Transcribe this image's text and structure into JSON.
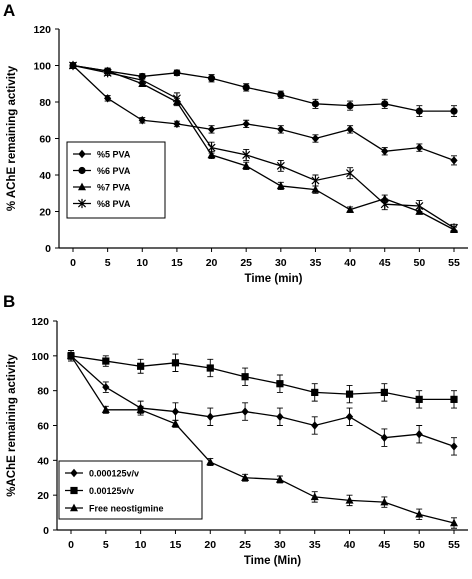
{
  "chart_data": [
    {
      "panel": "A",
      "type": "line",
      "xlabel": "Time (min)",
      "ylabel": "% AChE remaining activity",
      "x": [
        0,
        5,
        10,
        15,
        20,
        25,
        30,
        35,
        40,
        45,
        50,
        55
      ],
      "xticks": [
        0,
        5,
        10,
        15,
        20,
        25,
        30,
        35,
        40,
        45,
        50,
        55
      ],
      "ylim": [
        0,
        120
      ],
      "yticks": [
        0,
        20,
        40,
        60,
        80,
        100,
        120
      ],
      "grid": false,
      "legend_position": "bottom-left",
      "series": [
        {
          "name": "%5 PVA",
          "marker": "diamond",
          "color": "#000000",
          "values": [
            100,
            82,
            70,
            68,
            65,
            68,
            65,
            60,
            65,
            53,
            55,
            48
          ],
          "errors": [
            1.5,
            1.5,
            1.5,
            1.5,
            2,
            2,
            2,
            2,
            2,
            2,
            2,
            2.5
          ]
        },
        {
          "name": "%6 PVA",
          "marker": "circle",
          "color": "#000000",
          "values": [
            100,
            97,
            94,
            96,
            93,
            88,
            84,
            79,
            78,
            79,
            75,
            75
          ],
          "errors": [
            1.5,
            1.5,
            1.5,
            1.5,
            2,
            2,
            2,
            2.5,
            2.5,
            2.5,
            3,
            3
          ]
        },
        {
          "name": "%7 PVA",
          "marker": "triangle",
          "color": "#000000",
          "values": [
            100,
            97,
            90,
            80,
            51,
            45,
            34,
            32,
            21,
            27,
            20,
            10
          ],
          "errors": [
            1.5,
            1.5,
            1.5,
            2,
            2,
            2,
            2,
            2,
            1.5,
            2,
            1.5,
            1.5
          ]
        },
        {
          "name": "%8 PVA",
          "marker": "star",
          "color": "#000000",
          "values": [
            100,
            96,
            92,
            82,
            55,
            51,
            45,
            37,
            41,
            24,
            23,
            11
          ],
          "errors": [
            1.5,
            1.5,
            2,
            3,
            3,
            3,
            3,
            3,
            3,
            3,
            3,
            2
          ]
        }
      ]
    },
    {
      "panel": "B",
      "type": "line",
      "xlabel": "Time (Min)",
      "ylabel": "%AChE remaining activity",
      "x": [
        0,
        5,
        10,
        15,
        20,
        25,
        30,
        35,
        40,
        45,
        50,
        55
      ],
      "xticks": [
        0,
        5,
        10,
        15,
        20,
        25,
        30,
        35,
        40,
        45,
        50,
        55
      ],
      "ylim": [
        0,
        120
      ],
      "yticks": [
        0,
        20,
        40,
        60,
        80,
        100,
        120
      ],
      "grid": false,
      "legend_position": "bottom-left",
      "series": [
        {
          "name": "0.000125v/v",
          "marker": "diamond",
          "color": "#000000",
          "values": [
            100,
            82,
            70,
            68,
            65,
            68,
            65,
            60,
            65,
            53,
            55,
            48
          ],
          "errors": [
            3,
            3,
            4,
            5,
            5,
            5,
            5,
            5,
            5,
            5,
            5,
            5
          ]
        },
        {
          "name": "0.00125v/v",
          "marker": "square",
          "color": "#000000",
          "values": [
            100,
            97,
            94,
            96,
            93,
            88,
            84,
            79,
            78,
            79,
            75,
            75
          ],
          "errors": [
            3,
            3,
            4,
            5,
            5,
            5,
            5,
            5,
            5,
            5,
            5,
            5
          ]
        },
        {
          "name": "Free neostigmine",
          "marker": "triangle",
          "color": "#000000",
          "values": [
            100,
            69,
            69,
            61,
            39,
            30,
            29,
            19,
            17,
            16,
            9,
            4
          ],
          "errors": [
            2,
            2,
            2,
            2,
            2,
            2,
            2,
            3,
            3,
            3,
            3,
            3
          ]
        }
      ]
    }
  ],
  "panels": [
    {
      "letter": "A"
    },
    {
      "letter": "B"
    }
  ]
}
